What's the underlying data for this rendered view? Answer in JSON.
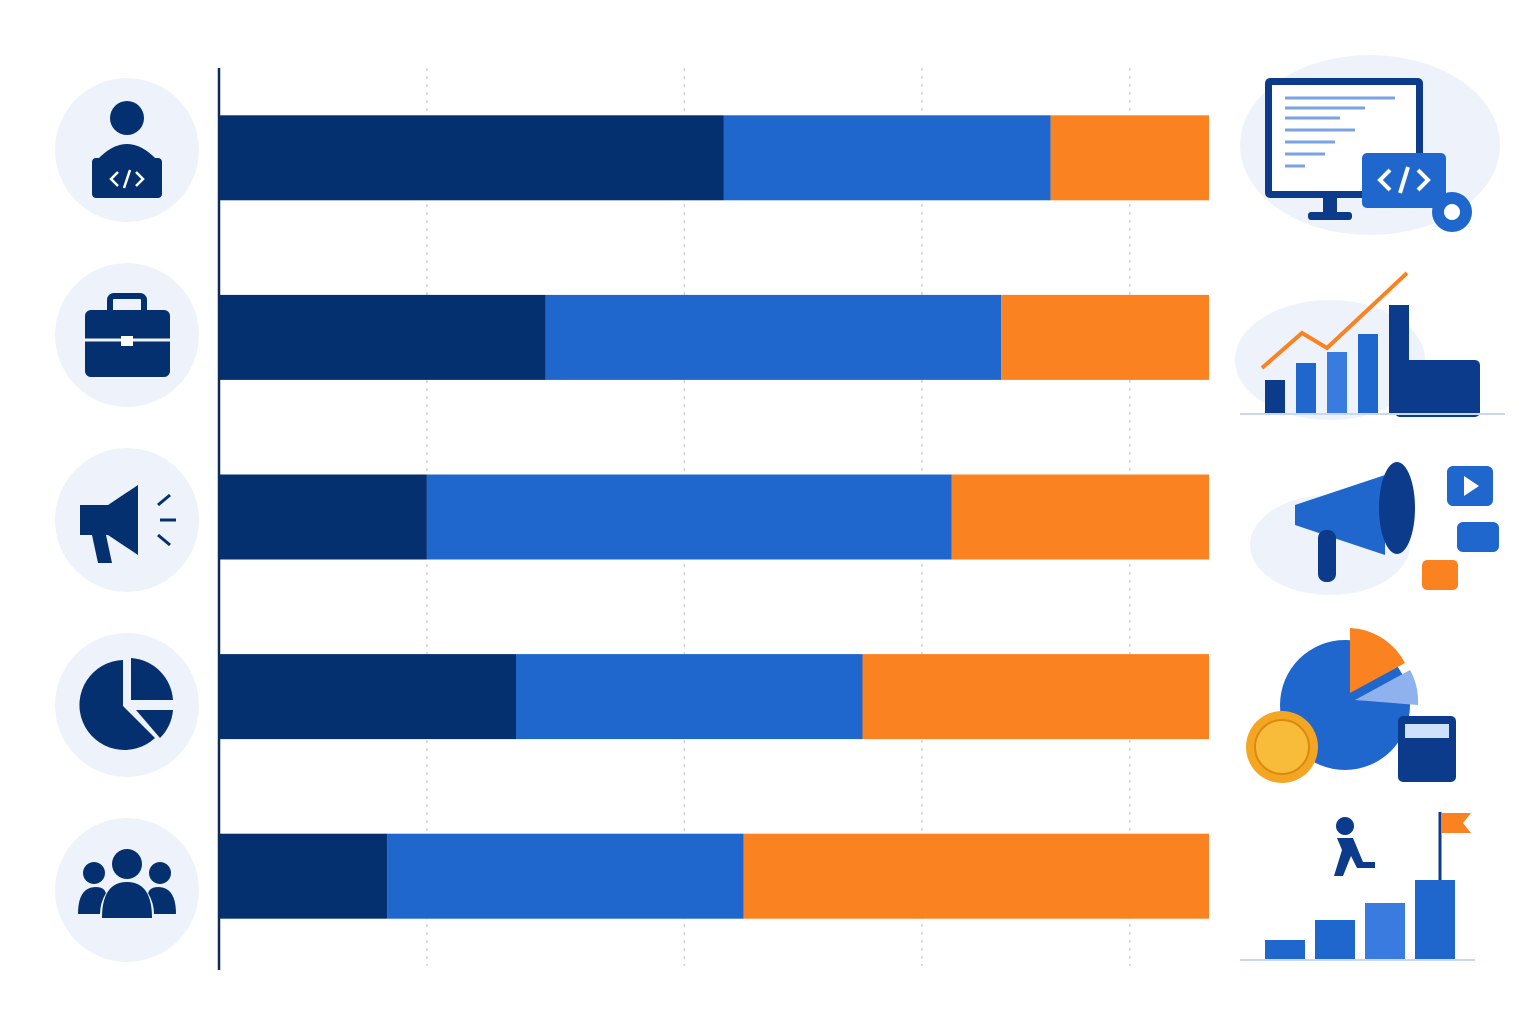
{
  "chart_data": {
    "type": "bar",
    "orientation": "horizontal",
    "stacked": true,
    "categories": [
      null,
      null,
      null,
      null,
      null
    ],
    "series": [
      {
        "color": "#05306f",
        "values": [
          51,
          33,
          21,
          30,
          17
        ]
      },
      {
        "color": "#1f67cc",
        "values": [
          33,
          46,
          53,
          35,
          36
        ]
      },
      {
        "color": "#fb8221",
        "values": [
          16,
          21,
          26,
          35,
          47
        ]
      }
    ],
    "xlim": [
      0,
      100
    ],
    "xticks": [
      21,
      47,
      71,
      92
    ],
    "grid": true
  }
}
